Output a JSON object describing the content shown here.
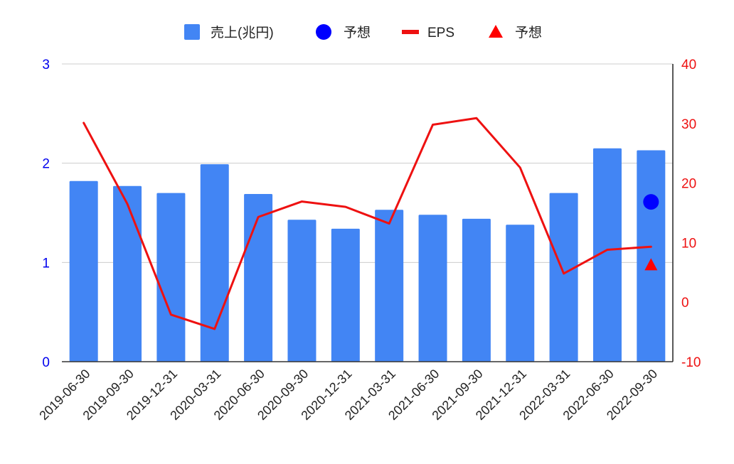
{
  "chart_data": {
    "type": "bar",
    "categories": [
      "2019-06-30",
      "2019-09-30",
      "2019-12-31",
      "2020-03-31",
      "2020-06-30",
      "2020-09-30",
      "2020-12-31",
      "2021-03-31",
      "2021-06-30",
      "2021-09-30",
      "2021-12-31",
      "2022-03-31",
      "2022-06-30",
      "2022-09-30"
    ],
    "series": [
      {
        "name": "売上(兆円)",
        "kind": "bar",
        "axis": "left",
        "color": "#4285f4",
        "values": [
          1.82,
          1.77,
          1.7,
          1.99,
          1.69,
          1.43,
          1.34,
          1.53,
          1.48,
          1.44,
          1.38,
          1.7,
          2.15,
          2.13
        ]
      },
      {
        "name": "予想",
        "kind": "marker-circle",
        "axis": "left",
        "color": "#0000ff",
        "points": [
          {
            "category": "2022-09-30",
            "value": 1.61
          }
        ]
      },
      {
        "name": "EPS",
        "kind": "line",
        "axis": "right",
        "color": "#ee1111",
        "values": [
          30.1,
          16.5,
          -2.1,
          -4.5,
          14.3,
          16.9,
          16.0,
          13.2,
          29.8,
          30.9,
          22.6,
          4.8,
          8.8,
          9.3
        ]
      },
      {
        "name": "予想",
        "kind": "marker-triangle",
        "axis": "right",
        "color": "#ff0000",
        "points": [
          {
            "category": "2022-09-30",
            "value": 6.3
          }
        ]
      }
    ],
    "left_axis": {
      "ylim": [
        0,
        3
      ],
      "ticks": [
        "0",
        "1",
        "2",
        "3"
      ],
      "color": "#0000ee"
    },
    "right_axis": {
      "ylim": [
        -10,
        40
      ],
      "ticks": [
        "-10",
        "0",
        "10",
        "20",
        "30",
        "40"
      ],
      "color": "#ee1111"
    },
    "grid": true,
    "legend_position": "top-center",
    "title": "",
    "xlabel": "",
    "ylabel": ""
  }
}
